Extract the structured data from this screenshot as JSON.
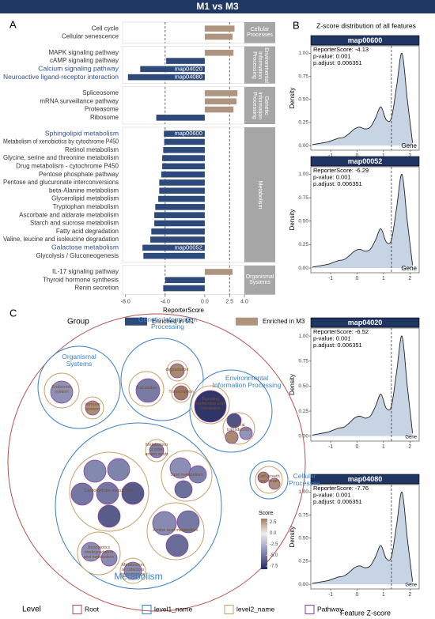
{
  "header": {
    "title": "M1 vs M3",
    "panel_labels": [
      "A",
      "B",
      "C"
    ]
  },
  "chart_data": [
    {
      "type": "bar",
      "xlabel": "ReporterScore",
      "categories": [
        "Cell cycle",
        "Cellular senescence",
        "MAPK signaling pathway",
        "cAMP signaling pathway",
        "Calcium signaling pathway",
        "Neuroactive ligand-receptor interaction",
        "Spliceosome",
        "mRNA surveillance pathway",
        "Proteasome",
        "Ribosome",
        "Sphingolipid metabolism",
        "Metabolism of xenobiotics by cytochrome P450",
        "Retinol metabolism",
        "Glycine, serine and threonine metabolism",
        "Drug metabolism - cytochrome P450",
        "Pentose phosphate pathway",
        "Pentose and glucuronate interconversions",
        "beta-Alanine metabolism",
        "Glycerolipid metabolism",
        "Tryptophan metabolism",
        "Ascorbate and aldarate metabolism",
        "Starch and sucrose metabolism",
        "Fatty acid degradation",
        "Valine, leucine and isoleucine degradation",
        "Galactose metabolism",
        "Glycolysis / Gluconeogenesis",
        "IL-17 signaling pathway",
        "Thyroid hormone synthesis",
        "Renin secretion"
      ],
      "values": [
        3.0,
        2.8,
        2.9,
        -3.9,
        -6.52,
        -7.76,
        3.3,
        3.2,
        2.9,
        -4.9,
        -4.13,
        -4.1,
        -4.2,
        -4.3,
        -4.3,
        -4.4,
        -4.6,
        -4.6,
        -4.7,
        -5.0,
        -5.1,
        -5.1,
        -5.4,
        -5.5,
        -6.29,
        -6.2,
        2.8,
        -4.0,
        -4.2
      ],
      "groups": [
        "Cellular Processes",
        "Cellular Processes",
        "Environmental Information Processing",
        "Environmental Information Processing",
        "Environmental Information Processing",
        "Environmental Information Processing",
        "Genetic Information Processing",
        "Genetic Information Processing",
        "Genetic Information Processing",
        "Genetic Information Processing",
        "Metabolism",
        "Metabolism",
        "Metabolism",
        "Metabolism",
        "Metabolism",
        "Metabolism",
        "Metabolism",
        "Metabolism",
        "Metabolism",
        "Metabolism",
        "Metabolism",
        "Metabolism",
        "Metabolism",
        "Metabolism",
        "Metabolism",
        "Metabolism",
        "Organismal Systems",
        "Organismal Systems",
        "Organismal Systems"
      ],
      "annotations": [
        {
          "category": "Calcium signaling pathway",
          "text": "map04020"
        },
        {
          "category": "Neuroactive ligand-receptor interaction",
          "text": "map04080"
        },
        {
          "category": "Sphingolipid metabolism",
          "text": "map00600"
        },
        {
          "category": "Galactose metabolism",
          "text": "map00052"
        }
      ],
      "highlight_color": "#2f4f8f",
      "xlim": [
        -8.3,
        4
      ],
      "xticks": [
        {
          "value": -8,
          "label": "-8.0"
        },
        {
          "value": -4,
          "label": "-4.0"
        },
        {
          "value": 0,
          "label": "0.0"
        },
        {
          "value": 2.5,
          "label": "2.5"
        },
        {
          "value": 4,
          "label": "4.0"
        }
      ],
      "vlines": [
        -4,
        2.5
      ],
      "legend_title": "Group",
      "legend": [
        {
          "name": "Enriched in M1",
          "color": "#2d4a7a"
        },
        {
          "name": "Enriched in M3",
          "color": "#ae9580"
        }
      ]
    },
    {
      "type": "density",
      "title": "Z-score distribution of all features",
      "xlabel": "Feature Z-score",
      "ylabel": "Density",
      "gene_label": "Gene",
      "x": [
        -1.7,
        -1.5,
        -1.3,
        -1.1,
        -0.9,
        -0.7,
        -0.5,
        -0.3,
        -0.1,
        0.1,
        0.3,
        0.5,
        0.7,
        0.9,
        1.1,
        1.3,
        1.5,
        1.7,
        1.9,
        2.1
      ],
      "density": [
        0.01,
        0.02,
        0.03,
        0.04,
        0.06,
        0.08,
        0.09,
        0.13,
        0.18,
        0.2,
        0.18,
        0.2,
        0.3,
        0.42,
        0.28,
        0.3,
        0.65,
        1.0,
        0.5,
        0.03
      ],
      "xlim": [
        -1.75,
        2.35
      ],
      "xticks": [
        -1,
        0,
        1,
        2
      ],
      "ylim": [
        -0.05,
        1.08
      ],
      "yticks": [
        {
          "value": 0,
          "label": "0.00"
        },
        {
          "value": 0.25,
          "label": "0.25"
        },
        {
          "value": 0.5,
          "label": "0.50"
        },
        {
          "value": 0.75,
          "label": "0.75"
        },
        {
          "value": 1,
          "label": "1.00"
        }
      ],
      "vline": 1.3,
      "fill": "#c6d4e4",
      "title_color": "#1f3563",
      "panels": [
        {
          "title": "map00600",
          "lines": [
            "ReporterScore: -4.13",
            "p-value: 0.001",
            "p.adjust: 0.006351"
          ]
        },
        {
          "title": "map00052",
          "lines": [
            "ReporterScore: -6.29",
            "p-value: 0.001",
            "p.adjust: 0.006351"
          ]
        },
        {
          "title": "map04020",
          "lines": [
            "ReporterScore: -6.52",
            "p-value: 0.001",
            "p.adjust: 0.006351"
          ]
        },
        {
          "title": "map04080",
          "lines": [
            "ReporterScore: -7.76",
            "p-value: 0.001",
            "p.adjust: 0.006351"
          ]
        }
      ]
    },
    {
      "type": "pack",
      "circles": [
        {
          "name": "Organismal Systems",
          "groups": [
            {
              "name": "Endocrine system",
              "scores": [
                -4.0
              ]
            },
            {
              "name": "Immune system",
              "scores": [
                2.8
              ]
            }
          ]
        },
        {
          "name": "Genetic Information Processing",
          "groups": [
            {
              "name": "Translation",
              "scores": [
                -4.9
              ]
            },
            {
              "name": "degradation",
              "scores": [
                2.9
              ]
            },
            {
              "name": "Transcription",
              "scores": [
                3.3
              ]
            }
          ]
        },
        {
          "name": "Environmental Information Processing",
          "groups": [
            {
              "name": "Signaling molecules and interaction",
              "scores": [
                -7.76
              ]
            },
            {
              "name": "Signal transduction",
              "scores": [
                -6.52,
                -3.9,
                2.9
              ]
            }
          ]
        },
        {
          "name": "Cellular Processes",
          "groups": [
            {
              "name": "Cell growth and death",
              "scores": [
                3.0,
                2.8
              ]
            }
          ]
        },
        {
          "name": "Metabolism",
          "groups": [
            {
              "name": "Carbohydrate metabolism",
              "scores": [
                -4.4,
                -4.6,
                -5.1,
                -5.1,
                -6.29,
                -6.2
              ]
            },
            {
              "name": "Lipid metabolism",
              "scores": [
                -4.13,
                -4.7,
                -5.4
              ]
            },
            {
              "name": "Metabolism of other amino acids",
              "scores": [
                -4.6
              ]
            },
            {
              "name": "Amino acid metabolism",
              "scores": [
                -4.3,
                -5.0,
                -5.5
              ]
            },
            {
              "name": "Xenobiotics biodegradation and metabolism",
              "scores": [
                -4.1,
                -4.3
              ]
            },
            {
              "name": "Metabolism of cofactors and vitamins",
              "scores": [
                -4.2
              ]
            }
          ]
        }
      ],
      "score_title": "Score",
      "score_lim": [
        -8.2,
        3.3
      ],
      "score_ticks": [
        {
          "value": 2.5,
          "label": "2.5"
        },
        {
          "value": 0,
          "label": "0.0"
        },
        {
          "value": -2.5,
          "label": "-2.5"
        },
        {
          "value": -5,
          "label": "-5.0"
        },
        {
          "value": -7.5,
          "label": "-7.5"
        }
      ],
      "level_title": "Level",
      "levels": [
        {
          "name": "Root",
          "color": "#b5504a"
        },
        {
          "name": "level1_name",
          "color": "#3c7fc6"
        },
        {
          "name": "level2_name",
          "color": "#c9a06a"
        },
        {
          "name": "Pathway",
          "color": "#8b3f9a"
        }
      ]
    }
  ]
}
